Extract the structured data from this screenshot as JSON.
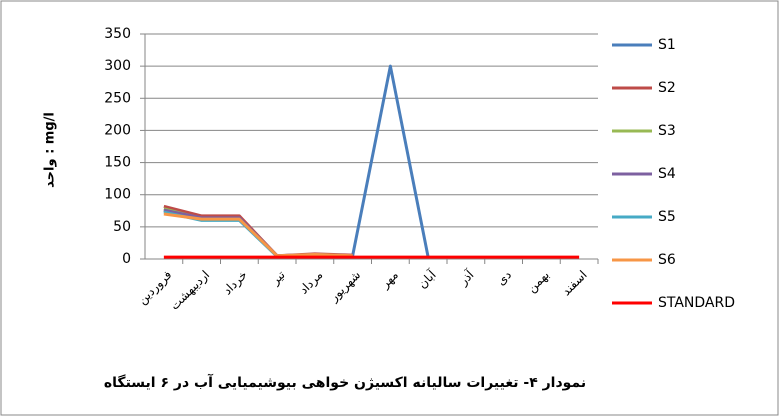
{
  "chart_data": {
    "type": "line",
    "title": "نمودار ۴- تغییرات سالیانه اکسیژن خواهی بیوشیمیایی آب در ۶ ایستگاه",
    "y_label": "واحد : mg/l",
    "categories": [
      "فروردین",
      "اردیبهشت",
      "خرداد",
      "تیر",
      "مرداد",
      "شهریور",
      "مهر",
      "آبان",
      "آذر",
      "دی",
      "بهمن",
      "اسفند"
    ],
    "series": [
      {
        "name": "S1",
        "color": "#4a7ebb",
        "values": [
          75,
          65,
          65,
          5,
          7,
          5,
          300,
          3,
          null,
          null,
          null,
          null
        ]
      },
      {
        "name": "S2",
        "color": "#be4b48",
        "values": [
          82,
          67,
          67,
          5,
          8,
          6,
          null,
          null,
          null,
          null,
          null,
          null
        ]
      },
      {
        "name": "S3",
        "color": "#98b954",
        "values": [
          78,
          63,
          63,
          4,
          7,
          5,
          null,
          null,
          null,
          null,
          null,
          null
        ]
      },
      {
        "name": "S4",
        "color": "#7d60a0",
        "values": [
          76,
          64,
          64,
          5,
          7,
          5,
          null,
          null,
          null,
          null,
          null,
          null
        ]
      },
      {
        "name": "S5",
        "color": "#46aac5",
        "values": [
          73,
          60,
          60,
          4,
          6,
          4,
          null,
          null,
          null,
          null,
          null,
          null
        ]
      },
      {
        "name": "S6",
        "color": "#f79646",
        "values": [
          70,
          62,
          62,
          5,
          7,
          5,
          null,
          null,
          null,
          null,
          null,
          null
        ]
      },
      {
        "name": "STANDARD",
        "color": "#ff0000",
        "values": [
          3,
          3,
          3,
          3,
          3,
          3,
          3,
          3,
          3,
          3,
          3,
          3
        ]
      }
    ],
    "ylim": [
      0,
      350
    ],
    "yticks": [
      0,
      50,
      100,
      150,
      200,
      250,
      300,
      350
    ],
    "grid": true
  }
}
